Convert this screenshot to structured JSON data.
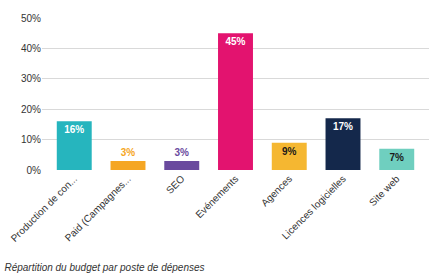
{
  "chart_data": {
    "type": "bar",
    "title": "Répartition du budget par poste de dépenses",
    "categories": [
      "Production de con...",
      "Paid (Campagnes...",
      "SEO",
      "Evénements",
      "Agences",
      "Licences logicielles",
      "Site web"
    ],
    "values": [
      16,
      3,
      3,
      45,
      9,
      17,
      7
    ],
    "value_labels": [
      "16%",
      "3%",
      "3%",
      "45%",
      "9%",
      "17%",
      "7%"
    ],
    "colors": [
      "#26b5be",
      "#f5a623",
      "#6a4a9e",
      "#e3136f",
      "#f5b731",
      "#14284b",
      "#6fcfbf"
    ],
    "ylim": [
      0,
      50
    ],
    "yticks": [
      {
        "value": 0,
        "label": "0%"
      },
      {
        "value": 10,
        "label": "10%"
      },
      {
        "value": 20,
        "label": "20%"
      },
      {
        "value": 30,
        "label": "30%"
      },
      {
        "value": 40,
        "label": "40%"
      },
      {
        "value": 50,
        "label": "50%"
      }
    ],
    "grid": true,
    "data_labels": true
  }
}
